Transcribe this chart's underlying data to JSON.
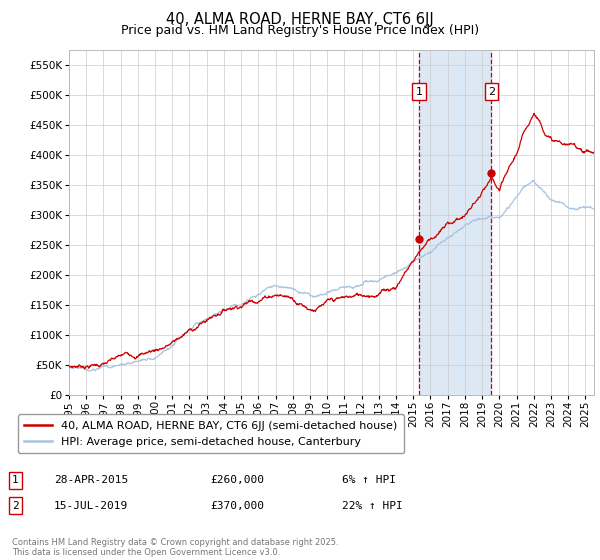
{
  "title": "40, ALMA ROAD, HERNE BAY, CT6 6JJ",
  "subtitle": "Price paid vs. HM Land Registry's House Price Index (HPI)",
  "ylim": [
    0,
    575000
  ],
  "yticks": [
    0,
    50000,
    100000,
    150000,
    200000,
    250000,
    300000,
    350000,
    400000,
    450000,
    500000,
    550000
  ],
  "xmin": 1995.0,
  "xmax": 2025.5,
  "sale1_x": 2015.33,
  "sale1_y": 260000,
  "sale1_label": "1",
  "sale1_date": "28-APR-2015",
  "sale1_price": "£260,000",
  "sale1_hpi": "6% ↑ HPI",
  "sale2_x": 2019.54,
  "sale2_y": 370000,
  "sale2_label": "2",
  "sale2_date": "15-JUL-2019",
  "sale2_price": "£370,000",
  "sale2_hpi": "22% ↑ HPI",
  "legend_line1": "40, ALMA ROAD, HERNE BAY, CT6 6JJ (semi-detached house)",
  "legend_line2": "HPI: Average price, semi-detached house, Canterbury",
  "footer": "Contains HM Land Registry data © Crown copyright and database right 2025.\nThis data is licensed under the Open Government Licence v3.0.",
  "hpi_color": "#a8c4e0",
  "price_color": "#cc0000",
  "sale_marker_color": "#cc0000",
  "shaded_color": "#dce9f5",
  "vline_color": "#cc0000",
  "grid_color": "#cccccc",
  "background_color": "#ffffff",
  "title_fontsize": 10.5,
  "subtitle_fontsize": 9,
  "axis_fontsize": 7.5,
  "legend_fontsize": 8,
  "footer_fontsize": 6
}
